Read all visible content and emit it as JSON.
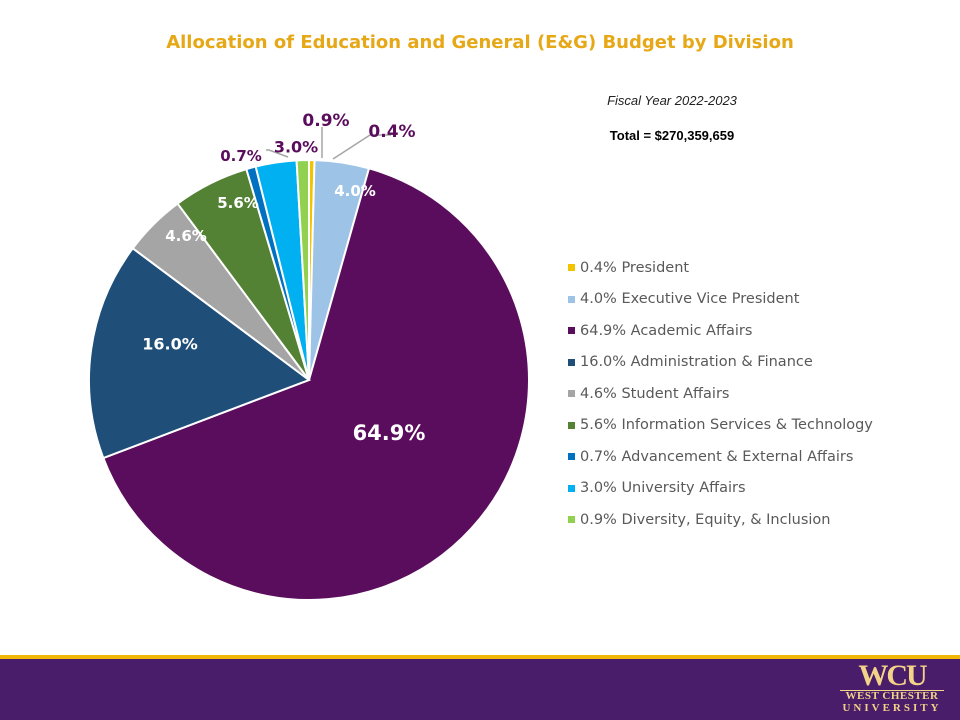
{
  "page": {
    "subtitle": "Fiscal Year 2022-2023",
    "total": "Total = $270,359,659"
  },
  "logo": {
    "mark": "WCU",
    "line1": "WEST CHESTER",
    "line2": "UNIVERSITY"
  },
  "colors": {
    "title": "#e6a817",
    "footer_band": "#4a1d6a",
    "footer_line": "#f2b705"
  },
  "chart_data": {
    "type": "pie",
    "title": "Allocation of Education and General (E&G) Budget by Division",
    "legend_position": "right",
    "slices": [
      {
        "name": "President",
        "value": 0.4,
        "data_label": "0.4%",
        "legend_label": "0.4% President",
        "color": "#f2c400",
        "label_color": "#5a0d5c"
      },
      {
        "name": "Executive Vice President",
        "value": 4.0,
        "data_label": "4.0%",
        "legend_label": "4.0% Executive Vice President",
        "color": "#9dc3e6",
        "label_color": "#ffffff"
      },
      {
        "name": "Academic Affairs",
        "value": 64.9,
        "data_label": "64.9%",
        "legend_label": "64.9% Academic Affairs",
        "color": "#5a0d5c",
        "label_color": "#ffffff"
      },
      {
        "name": "Administration & Finance",
        "value": 16.0,
        "data_label": "16.0%",
        "legend_label": "16.0% Administration & Finance",
        "color": "#1f4e79",
        "label_color": "#ffffff"
      },
      {
        "name": "Student Affairs",
        "value": 4.6,
        "data_label": "4.6%",
        "legend_label": "4.6% Student Affairs",
        "color": "#a5a5a5",
        "label_color": "#ffffff"
      },
      {
        "name": "Information Services & Technology",
        "value": 5.6,
        "data_label": "5.6%",
        "legend_label": "5.6% Information Services & Technology",
        "color": "#548235",
        "label_color": "#ffffff"
      },
      {
        "name": "Advancement & External Affairs",
        "value": 0.7,
        "data_label": "0.7%",
        "legend_label": "0.7% Advancement & External Affairs",
        "color": "#0070c0",
        "label_color": "#5a0d5c"
      },
      {
        "name": "University Affairs",
        "value": 3.0,
        "data_label": "3.0%",
        "legend_label": "3.0% University Affairs",
        "color": "#00b0f0",
        "label_color": "#5a0d5c"
      },
      {
        "name": "Diversity, Equity, & Inclusion",
        "value": 0.9,
        "data_label": "0.9%",
        "legend_label": "0.9% Diversity, Equity, & Inclusion",
        "color": "#92d050",
        "label_color": "#5a0d5c"
      }
    ]
  }
}
